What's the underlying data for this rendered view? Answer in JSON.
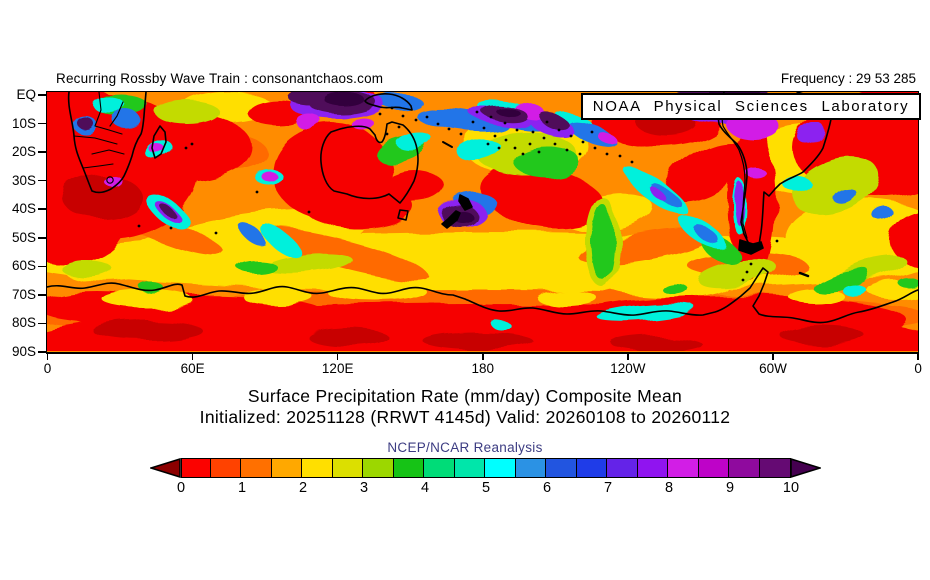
{
  "header": {
    "left_text": "Recurring Rossby Wave Train : consonantchaos.com",
    "frequency_text": "Frequency : 29 53 285"
  },
  "map": {
    "noaa_label": "NOAA Physical Sciences Laboratory"
  },
  "axes": {
    "lat_labels": [
      "EQ",
      "10S",
      "20S",
      "30S",
      "40S",
      "50S",
      "60S",
      "70S",
      "80S",
      "90S"
    ],
    "lon_labels": [
      "0",
      "60E",
      "120E",
      "180",
      "120W",
      "60W",
      "0"
    ]
  },
  "titles": {
    "line1": "Surface Precipitation Rate (mm/day) Composite Mean",
    "line2": "Initialized: 20251128 (RRWT 4145d) Valid: 20260108 to 20260112",
    "reanalysis": "NCEP/NCAR Reanalysis"
  },
  "colorbar": {
    "tick_labels": [
      "0",
      "1",
      "2",
      "3",
      "4",
      "5",
      "6",
      "7",
      "8",
      "9",
      "10"
    ],
    "segment_colors": [
      "#fb0200",
      "#ff4200",
      "#ff7000",
      "#ffa800",
      "#ffdf00",
      "#dcdf00",
      "#9cd700",
      "#16c316",
      "#00dc78",
      "#00e6aa",
      "#00ffff",
      "#2b92e4",
      "#2255e0",
      "#1f3ce8",
      "#6423e8",
      "#9014f0",
      "#d21ee6",
      "#be03c8",
      "#8f0a9e",
      "#650a73"
    ],
    "left_arrow_color": "#8c0000",
    "right_arrow_color": "#450050",
    "min": 0,
    "max": 10,
    "units": "mm/day"
  },
  "chart_data": {
    "type": "heatmap",
    "title": "Surface Precipitation Rate (mm/day) Composite Mean",
    "subtitle": "Initialized: 20251128 (RRWT 4145d) Valid: 20260108 to 20260112",
    "source": "NCEP/NCAR Reanalysis",
    "annotation_top_left": "Recurring Rossby Wave Train : consonantchaos.com",
    "annotation_top_right": "Frequency : 29 53 285",
    "credit": "NOAA Physical Sciences Laboratory",
    "x_axis": {
      "label": "longitude",
      "tick_labels": [
        "0",
        "60E",
        "120E",
        "180",
        "120W",
        "60W",
        "0"
      ],
      "range_deg_east": [
        0,
        360
      ]
    },
    "y_axis": {
      "label": "latitude",
      "tick_labels": [
        "EQ",
        "10S",
        "20S",
        "30S",
        "40S",
        "50S",
        "60S",
        "70S",
        "80S",
        "90S"
      ],
      "range_deg": [
        0,
        -90
      ]
    },
    "color_scale": {
      "variable": "surface precipitation rate",
      "units": "mm/day",
      "min": 0,
      "max": 10,
      "ticks": [
        0,
        1,
        2,
        3,
        4,
        5,
        6,
        7,
        8,
        9,
        10
      ],
      "palette": "rainbow red(low) to dark-purple(high), 0.5 mm/day steps"
    },
    "grid": false,
    "legend_position": "bottom"
  }
}
